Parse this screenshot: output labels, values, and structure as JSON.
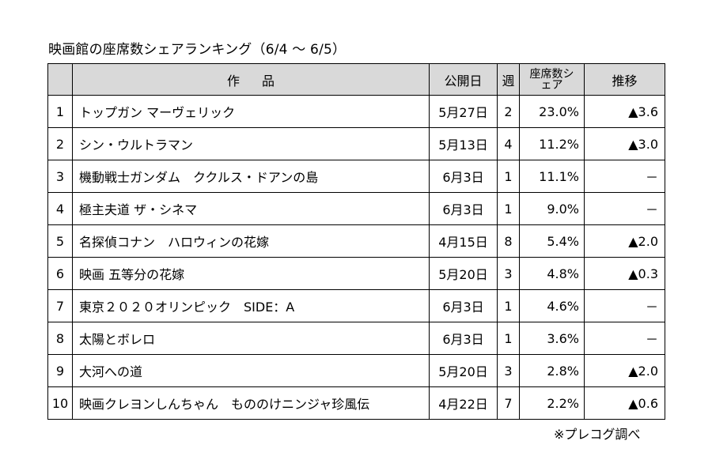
{
  "title": "映画館の座席数シェアランキング（6/4 ～ 6/5）",
  "headers": {
    "rank": "",
    "title": "作品",
    "release": "公開日",
    "week": "週",
    "share": "座席数シェア",
    "trend": "推移"
  },
  "rows": [
    {
      "rank": "1",
      "title": "トップガン マーヴェリック",
      "release": "5月27日",
      "week": "2",
      "share": "23.0%",
      "trend": "▲3.6"
    },
    {
      "rank": "2",
      "title": "シン・ウルトラマン",
      "release": "5月13日",
      "week": "4",
      "share": "11.2%",
      "trend": "▲3.0"
    },
    {
      "rank": "3",
      "title": "機動戦士ガンダム　ククルス・ドアンの島",
      "release": "6月3日",
      "week": "1",
      "share": "11.1%",
      "trend": "－"
    },
    {
      "rank": "4",
      "title": "極主夫道 ザ・シネマ",
      "release": "6月3日",
      "week": "1",
      "share": "9.0%",
      "trend": "－"
    },
    {
      "rank": "5",
      "title": "名探偵コナン　ハロウィンの花嫁",
      "release": "4月15日",
      "week": "8",
      "share": "5.4%",
      "trend": "▲2.0"
    },
    {
      "rank": "6",
      "title": "映画 五等分の花嫁",
      "release": "5月20日",
      "week": "3",
      "share": "4.8%",
      "trend": "▲0.3"
    },
    {
      "rank": "7",
      "title": "東京２０２０オリンピック　SIDE：A",
      "release": "6月3日",
      "week": "1",
      "share": "4.6%",
      "trend": "－"
    },
    {
      "rank": "8",
      "title": "太陽とボレロ",
      "release": "6月3日",
      "week": "1",
      "share": "3.6%",
      "trend": "－"
    },
    {
      "rank": "9",
      "title": "大河への道",
      "release": "5月20日",
      "week": "3",
      "share": "2.8%",
      "trend": "▲2.0"
    },
    {
      "rank": "10",
      "title": "映画クレヨンしんちゃん　もののけニンジャ珍風伝",
      "release": "4月22日",
      "week": "7",
      "share": "2.2%",
      "trend": "▲0.6"
    }
  ],
  "source": "※プレコグ調べ",
  "colors": {
    "header_bg": "#d9d9d9",
    "border": "#000000"
  }
}
